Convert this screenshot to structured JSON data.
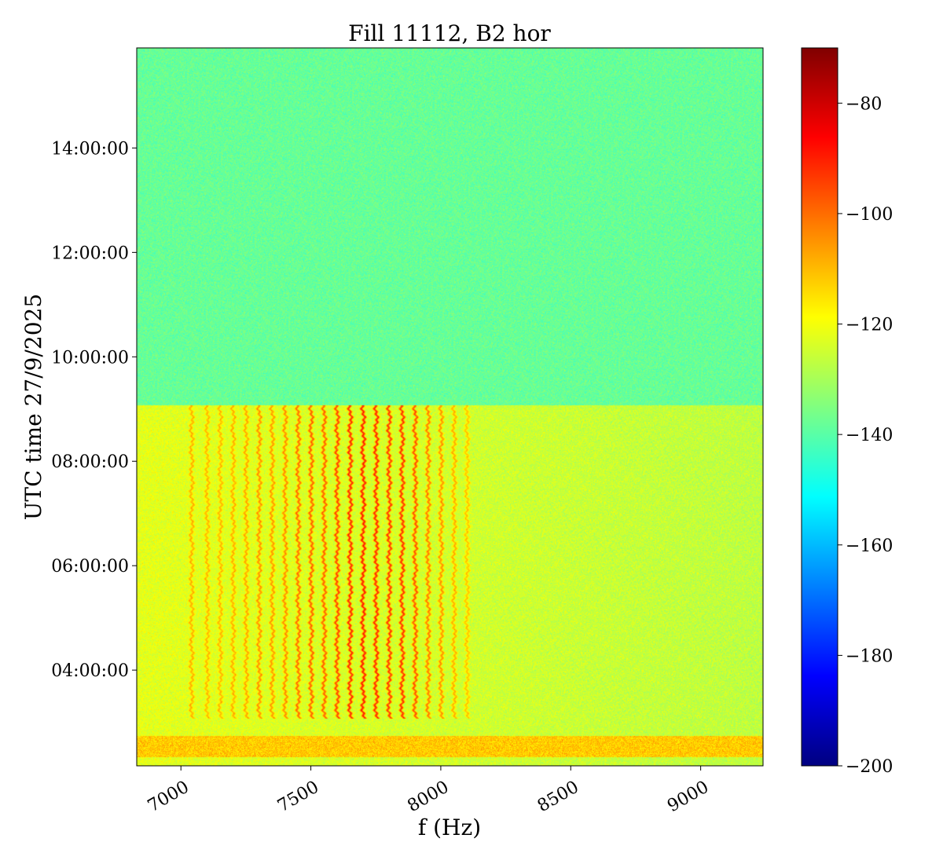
{
  "chart_data": {
    "type": "heatmap",
    "title": "Fill 11112, B2 hor",
    "xlabel": "f (Hz)",
    "ylabel": "UTC time 27/9/2025",
    "xlim": [
      6830,
      9240
    ],
    "x_ticks": [
      7000,
      7500,
      8000,
      8500,
      9000
    ],
    "x_tick_labels": [
      "7000",
      "7500",
      "8000",
      "8500",
      "9000"
    ],
    "ylim": [
      "02:10",
      "15:55"
    ],
    "y_ticks": [
      "04:00",
      "06:00",
      "08:00",
      "10:00",
      "12:00",
      "14:00"
    ],
    "y_tick_labels": [
      "04:00:00",
      "06:00:00",
      "08:00:00",
      "10:00:00",
      "12:00:00",
      "14:00:00"
    ],
    "colorbar": {
      "colormap": "jet",
      "range": [
        -200,
        -70
      ],
      "ticks": [
        -80,
        -100,
        -120,
        -140,
        -160,
        -180,
        -200
      ],
      "tick_labels": [
        "−80",
        "−100",
        "−120",
        "−140",
        "−160",
        "−180",
        "−200"
      ]
    },
    "regions": [
      {
        "time_from": "09:05",
        "time_to": "15:55",
        "f_from": 6830,
        "f_to": 9240,
        "level_dB": -138
      },
      {
        "time_from": "02:10",
        "time_to": "09:05",
        "f_from": 6830,
        "f_to": 9240,
        "level_dB": -122
      }
    ],
    "lines": {
      "time_from": "03:05",
      "time_to": "09:05",
      "frequencies": [
        7040,
        7100,
        7150,
        7200,
        7250,
        7300,
        7350,
        7400,
        7450,
        7500,
        7550,
        7600,
        7650,
        7700,
        7750,
        7800,
        7850,
        7900,
        7950,
        8000,
        8050,
        8100
      ],
      "levels_dB": [
        -107,
        -108,
        -108,
        -107,
        -106,
        -103,
        -104,
        -102,
        -98,
        -96,
        -96,
        -92,
        -88,
        -86,
        -88,
        -90,
        -89,
        -94,
        -100,
        -103,
        -107,
        -110
      ]
    },
    "band": {
      "time_from": "02:20",
      "time_to": "02:45",
      "f_from": 6830,
      "f_to": 9240,
      "level_dB": -112
    }
  }
}
